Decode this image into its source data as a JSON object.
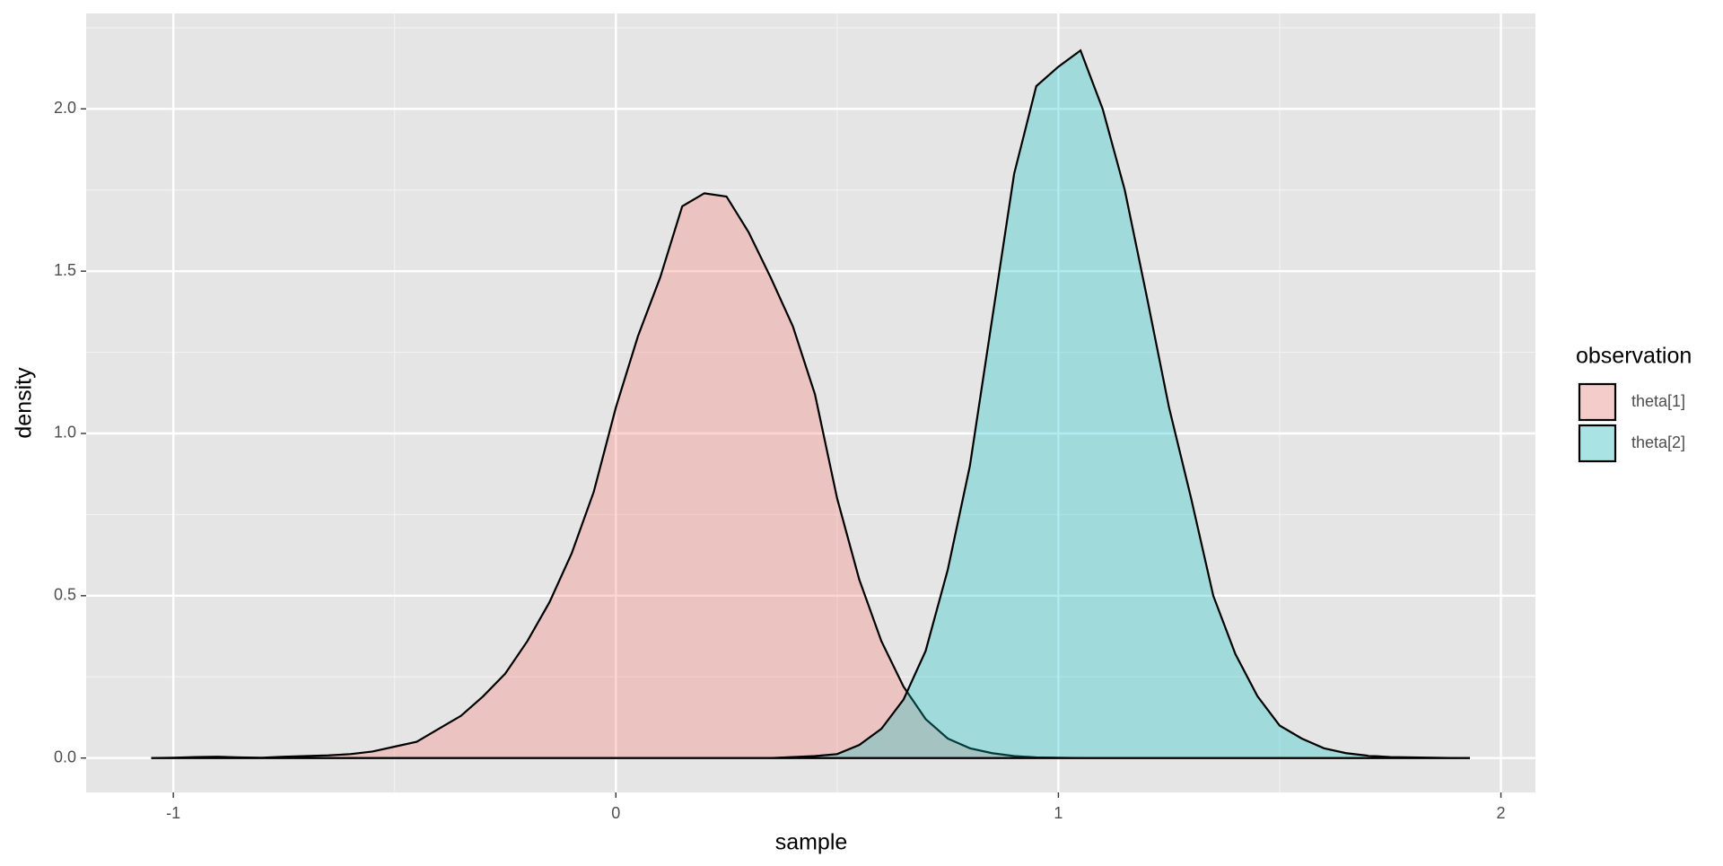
{
  "chart_data": {
    "type": "density",
    "x_label": "sample",
    "y_label": "density",
    "legend_title": "observation",
    "legend": "right",
    "grid": true,
    "x": [
      -1.05,
      -1.0,
      -0.95,
      -0.9,
      -0.85,
      -0.8,
      -0.75,
      -0.7,
      -0.65,
      -0.6,
      -0.55,
      -0.5,
      -0.45,
      -0.4,
      -0.35,
      -0.3,
      -0.25,
      -0.2,
      -0.15,
      -0.1,
      -0.05,
      0,
      0.05,
      0.1,
      0.15,
      0.2,
      0.25,
      0.3,
      0.35,
      0.4,
      0.45,
      0.5,
      0.55,
      0.6,
      0.65,
      0.7,
      0.75,
      0.8,
      0.85,
      0.9,
      0.95,
      1.0,
      1.05,
      1.1,
      1.15,
      1.2,
      1.25,
      1.3,
      1.35,
      1.4,
      1.45,
      1.5,
      1.55,
      1.6,
      1.65,
      1.7,
      1.75,
      1.8,
      1.85,
      1.9,
      1.93
    ],
    "series": [
      {
        "name": "theta[1]",
        "color": "#F8766D",
        "values": [
          0,
          0.001,
          0.003,
          0.004,
          0.002,
          0.001,
          0.004,
          0.006,
          0.008,
          0.012,
          0.02,
          0.035,
          0.05,
          0.09,
          0.13,
          0.19,
          0.26,
          0.36,
          0.48,
          0.63,
          0.82,
          1.08,
          1.3,
          1.48,
          1.7,
          1.74,
          1.73,
          1.62,
          1.48,
          1.33,
          1.12,
          0.8,
          0.55,
          0.36,
          0.22,
          0.12,
          0.06,
          0.03,
          0.015,
          0.006,
          0.002,
          0.001,
          0,
          0,
          0,
          0,
          0,
          0,
          0,
          0,
          0,
          0,
          0,
          0,
          0,
          0,
          0,
          0,
          0,
          0,
          0
        ]
      },
      {
        "name": "theta[2]",
        "color": "#00BFC4",
        "values": [
          0,
          0,
          0,
          0,
          0,
          0,
          0,
          0,
          0,
          0,
          0,
          0,
          0,
          0,
          0,
          0,
          0,
          0,
          0,
          0,
          0,
          0,
          0,
          0,
          0,
          0,
          0,
          0,
          0,
          0.003,
          0.006,
          0.012,
          0.04,
          0.09,
          0.18,
          0.33,
          0.58,
          0.9,
          1.35,
          1.8,
          2.07,
          2.13,
          2.18,
          2.0,
          1.75,
          1.42,
          1.08,
          0.8,
          0.5,
          0.32,
          0.19,
          0.1,
          0.06,
          0.03,
          0.015,
          0.007,
          0.003,
          0.002,
          0.001,
          0,
          0
        ]
      }
    ],
    "xlim": [
      -1.197,
      2.078
    ],
    "ylim": [
      -0.106,
      2.294
    ],
    "xticks": [
      -1,
      0,
      1,
      2
    ],
    "yticks": [
      {
        "value": 0,
        "label": "0.0"
      },
      {
        "value": 0.5,
        "label": "0.5"
      },
      {
        "value": 1,
        "label": "1.0"
      },
      {
        "value": 1.5,
        "label": "1.5"
      },
      {
        "value": 2,
        "label": "2.0"
      }
    ],
    "x_minor_ticks": [
      -0.5,
      0.5,
      1.5
    ],
    "y_minor_ticks": [
      0.25,
      0.75,
      1.25,
      1.75,
      2.25
    ]
  }
}
